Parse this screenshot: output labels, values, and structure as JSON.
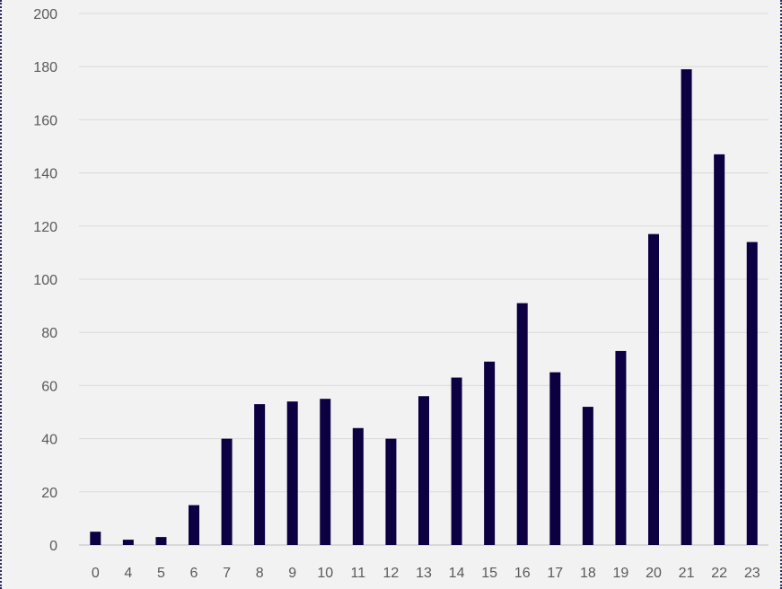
{
  "chart_data": {
    "type": "bar",
    "title": "",
    "xlabel": "",
    "ylabel": "",
    "categories": [
      "0",
      "4",
      "5",
      "6",
      "7",
      "8",
      "9",
      "10",
      "11",
      "12",
      "13",
      "14",
      "15",
      "16",
      "17",
      "18",
      "19",
      "20",
      "21",
      "22",
      "23"
    ],
    "values": [
      5,
      2,
      3,
      15,
      40,
      53,
      54,
      55,
      44,
      40,
      56,
      63,
      69,
      91,
      65,
      52,
      73,
      117,
      179,
      147,
      114
    ],
    "ylim": [
      0,
      200
    ],
    "yticks": [
      0,
      20,
      40,
      60,
      80,
      100,
      120,
      140,
      160,
      180,
      200
    ],
    "grid": true,
    "legend": "none",
    "colors": {
      "bar": "#0c0042",
      "background": "#f2f2f2",
      "grid": "#d9d9d9",
      "tick_text": "#595959"
    }
  }
}
